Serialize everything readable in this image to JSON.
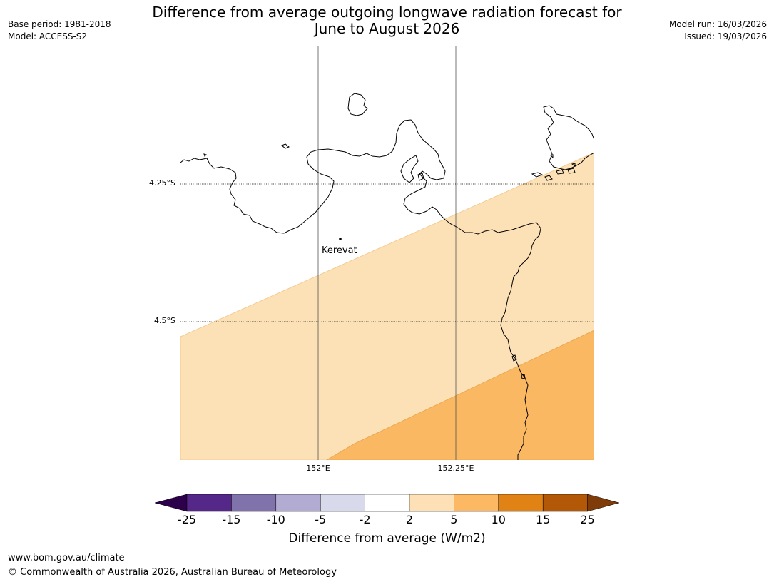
{
  "header": {
    "title_line1": "Difference from average outgoing longwave radiation forecast for",
    "title_line2": "June to August 2026",
    "base_period": "Base period: 1981-2018",
    "model": "Model: ACCESS-S2",
    "model_run": "Model run: 16/03/2026",
    "issued": "Issued: 19/03/2026"
  },
  "map": {
    "latitude_labels": [
      "4.25°S",
      "4.5°S"
    ],
    "longitude_labels": [
      "152°E",
      "152.25°E"
    ],
    "place_label": "Kerevat",
    "colors": {
      "band_2_5": "#fce0b6",
      "band_5_10": "#fab862",
      "coast": "#000000"
    }
  },
  "colorbar": {
    "label": "Difference from average (W/m2)",
    "ticks": [
      "-25",
      "-15",
      "-10",
      "-5",
      "-2",
      "2",
      "5",
      "10",
      "15",
      "25"
    ],
    "colors": [
      "#2d004b",
      "#542788",
      "#8073ac",
      "#b2abd2",
      "#d8daeb",
      "#ffffff",
      "#fee0b6",
      "#fdb863",
      "#e08214",
      "#b35806",
      "#7f3b08"
    ]
  },
  "footer": {
    "url": "www.bom.gov.au/climate",
    "copyright": "© Commonwealth of Australia 2026, Australian Bureau of Meteorology"
  }
}
